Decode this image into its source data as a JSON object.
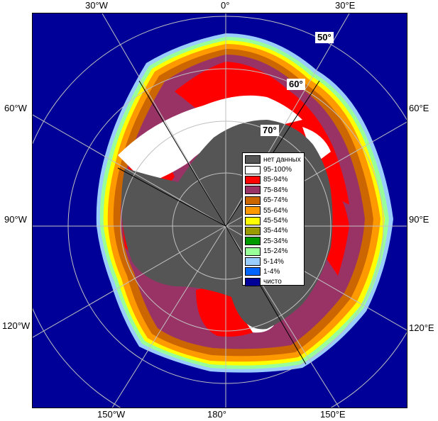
{
  "edge_labels": {
    "top": [
      "30°W",
      "0°",
      "30°E"
    ],
    "bottom": [
      "150°W",
      "180°",
      "150°E"
    ],
    "left": [
      "60°W",
      "90°W",
      "120°W"
    ],
    "right": [
      "60°E",
      "90°E",
      "120°E"
    ]
  },
  "latitude_labels": [
    "50°",
    "60°",
    "70°"
  ],
  "legend": [
    {
      "label": "нет данных",
      "color": "#555555"
    },
    {
      "label": "95-100%",
      "color": "#ffffff"
    },
    {
      "label": "85-94%",
      "color": "#ff0000"
    },
    {
      "label": "75-84%",
      "color": "#993366"
    },
    {
      "label": "65-74%",
      "color": "#cc6600"
    },
    {
      "label": "55-64%",
      "color": "#ff9900"
    },
    {
      "label": "45-54%",
      "color": "#ffff00"
    },
    {
      "label": "35-44%",
      "color": "#999900"
    },
    {
      "label": "25-34%",
      "color": "#009900"
    },
    {
      "label": "15-24%",
      "color": "#99ff99"
    },
    {
      "label": "5-14%",
      "color": "#99ccff"
    },
    {
      "label": "1-4%",
      "color": "#0066ff"
    },
    {
      "label": "чисто",
      "color": "#000099"
    }
  ],
  "colors": {
    "ocean": "#000099",
    "land": "#555555",
    "border": "#000000",
    "grid": "#c0c0c0"
  }
}
